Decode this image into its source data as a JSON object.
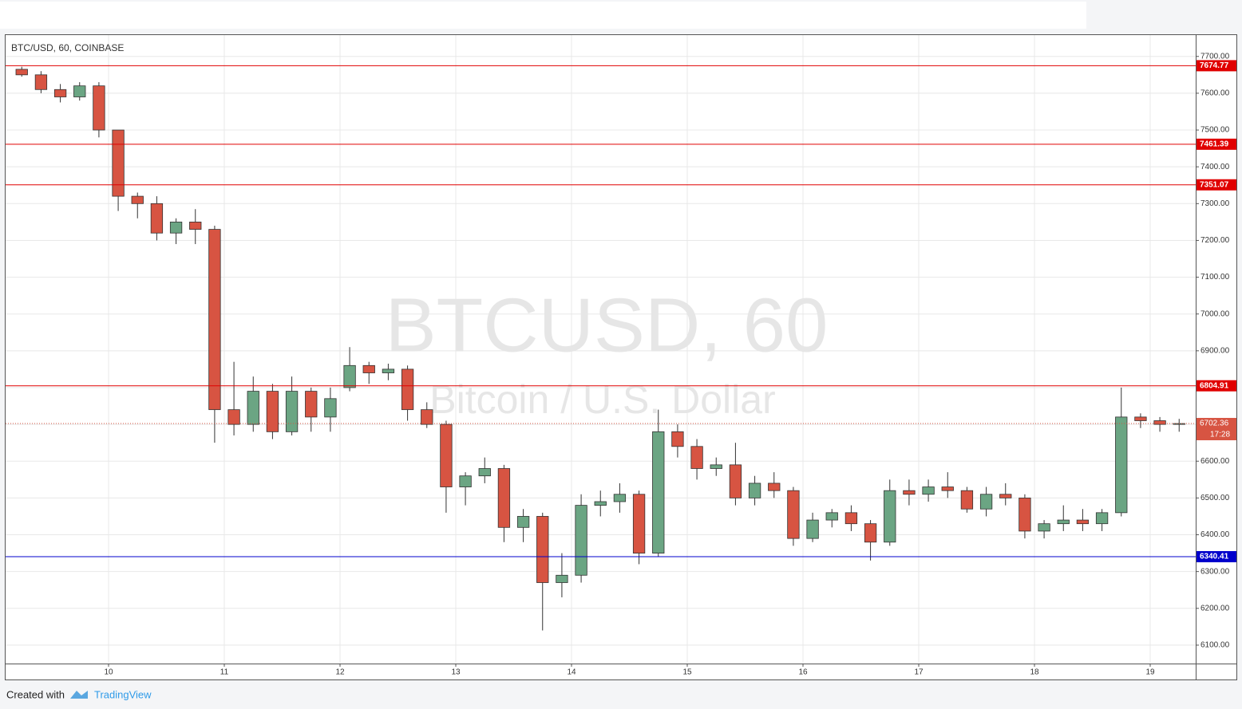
{
  "chart_data": {
    "type": "candlestick",
    "title": "BTC/USD, 60, COINBASE",
    "watermark": "BTCUSD, 60",
    "watermark_subtitle": "Bitcoin / U.S. Dollar",
    "footer_text": "Created with",
    "footer_brand": "TradingView",
    "categories": [
      null,
      null,
      null,
      null,
      null,
      "10",
      null,
      null,
      null,
      null,
      null,
      "11",
      null,
      null,
      null,
      null,
      null,
      "12",
      null,
      null,
      null,
      null,
      null,
      "13",
      null,
      null,
      null,
      null,
      null,
      "14",
      null,
      null,
      null,
      null,
      null,
      "15",
      null,
      null,
      null,
      null,
      null,
      "16",
      null,
      null,
      null,
      null,
      null,
      "17",
      null,
      null,
      null,
      null,
      null,
      "18",
      null,
      null,
      null,
      null,
      null,
      "19",
      null
    ],
    "open": [
      7665,
      7650,
      7610,
      7590,
      7620,
      7500,
      7320,
      7300,
      7220,
      7250,
      7230,
      6740,
      6700,
      6790,
      6680,
      6790,
      6720,
      6800,
      6860,
      6840,
      6850,
      6740,
      6700,
      6530,
      6560,
      6580,
      6420,
      6450,
      6270,
      6290,
      6480,
      6490,
      6510,
      6350,
      6680,
      6640,
      6580,
      6590,
      6500,
      6540,
      6520,
      6390,
      6440,
      6460,
      6430,
      6380,
      6520,
      6510,
      6530,
      6520,
      6470,
      6510,
      6500,
      6410,
      6430,
      6440,
      6430,
      6460,
      6720,
      6710,
      6700
    ],
    "high": [
      7672,
      7660,
      7625,
      7630,
      7630,
      7500,
      7330,
      7320,
      7260,
      7285,
      7240,
      6870,
      6830,
      6810,
      6830,
      6800,
      6800,
      6910,
      6870,
      6865,
      6860,
      6760,
      6710,
      6570,
      6610,
      6590,
      6470,
      6460,
      6350,
      6510,
      6520,
      6540,
      6520,
      6740,
      6700,
      6660,
      6610,
      6650,
      6560,
      6570,
      6530,
      6460,
      6470,
      6480,
      6440,
      6550,
      6550,
      6550,
      6570,
      6530,
      6530,
      6540,
      6510,
      6440,
      6480,
      6470,
      6470,
      6800,
      6730,
      6720,
      6715
    ],
    "low": [
      7645,
      7600,
      7575,
      7580,
      7480,
      7280,
      7260,
      7200,
      7190,
      7190,
      6650,
      6670,
      6680,
      6660,
      6670,
      6680,
      6680,
      6790,
      6810,
      6820,
      6710,
      6690,
      6460,
      6480,
      6540,
      6380,
      6380,
      6140,
      6230,
      6270,
      6450,
      6460,
      6320,
      6340,
      6610,
      6550,
      6560,
      6480,
      6480,
      6500,
      6370,
      6380,
      6420,
      6410,
      6330,
      6370,
      6480,
      6490,
      6500,
      6460,
      6450,
      6480,
      6390,
      6390,
      6410,
      6410,
      6410,
      6450,
      6690,
      6680,
      6680
    ],
    "close": [
      7650,
      7610,
      7590,
      7620,
      7500,
      7320,
      7300,
      7220,
      7250,
      7230,
      6740,
      6700,
      6790,
      6680,
      6790,
      6720,
      6770,
      6860,
      6840,
      6850,
      6740,
      6700,
      6530,
      6560,
      6580,
      6420,
      6450,
      6270,
      6290,
      6480,
      6490,
      6510,
      6350,
      6680,
      6640,
      6580,
      6590,
      6500,
      6540,
      6520,
      6390,
      6440,
      6460,
      6430,
      6380,
      6520,
      6510,
      6530,
      6520,
      6470,
      6510,
      6500,
      6410,
      6430,
      6440,
      6430,
      6460,
      6720,
      6710,
      6700,
      6702.36
    ],
    "up_color": "#6ba583",
    "down_color": "#d75442",
    "levels": [
      {
        "value": 7674.77,
        "color": "#e00000"
      },
      {
        "value": 7461.39,
        "color": "#e00000"
      },
      {
        "value": 7351.07,
        "color": "#e00000"
      },
      {
        "value": 6804.91,
        "color": "#e00000"
      },
      {
        "value": 6340.41,
        "color": "#0000cc"
      }
    ],
    "last_price": 6702.36,
    "countdown": "17:28",
    "ylim": [
      6050,
      7758
    ],
    "yticks": [
      {
        "value": 6100,
        "label": "6100.00"
      },
      {
        "value": 6200,
        "label": "6200.00"
      },
      {
        "value": 6300,
        "label": "6300.00"
      },
      {
        "value": 6400,
        "label": "6400.00"
      },
      {
        "value": 6500,
        "label": "6500.00"
      },
      {
        "value": 6600,
        "label": "6600.00"
      },
      {
        "value": 6700,
        "label": "6700.00"
      },
      {
        "value": 6800,
        "label": "6800.00"
      },
      {
        "value": 6900,
        "label": "6900.00"
      },
      {
        "value": 7000,
        "label": "7000.00"
      },
      {
        "value": 7100,
        "label": "7100.00"
      },
      {
        "value": 7200,
        "label": "7200.00"
      },
      {
        "value": 7300,
        "label": "7300.00"
      },
      {
        "value": 7400,
        "label": "7400.00"
      },
      {
        "value": 7500,
        "label": "7500.00"
      },
      {
        "value": 7600,
        "label": "7600.00"
      },
      {
        "value": 7700,
        "label": "7700.00"
      }
    ],
    "grid": true
  }
}
